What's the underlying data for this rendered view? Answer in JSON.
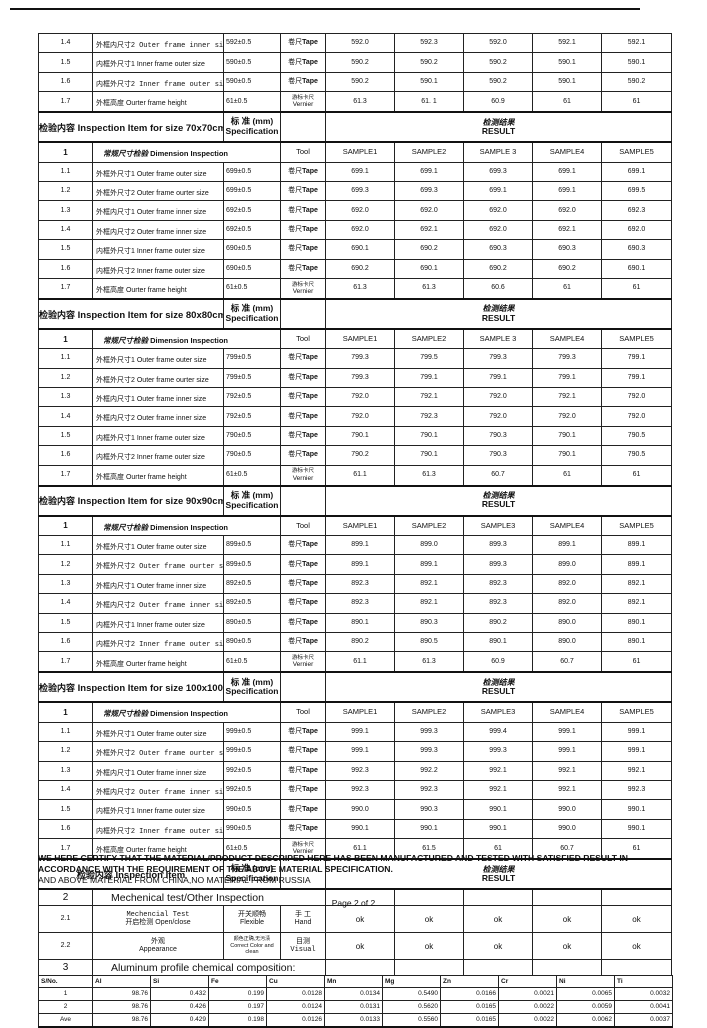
{
  "page": {
    "certify_bold": "WE HERE CERTIFY THAT THE MATERIAL/PRODUCT DESCRIPED HERE HAS BEEN MANUFACTURED AND TESTED WITH SATISFIED RESULT IN ACCORDANCE WITH THE REQUIREMENT OF THE ABOVE MATERIAL SPECIFICATION.",
    "certify_normal": "AND ABOVE MATERIAL FROM CHINA,NO MATERIAL FROM RUSSIA",
    "page_number": "Page 2 of 2"
  },
  "labels": {
    "inspection_item_cn": "检验内容",
    "spec_cn": "标 准 (mm)",
    "spec_en": "Specification",
    "result_cn": "检测结果",
    "result_en": "RESULT",
    "tool": "Tool"
  },
  "carryover_rows": [
    {
      "no": "1.4",
      "cn": "外框内尺寸2",
      "en": "Outer frame inner size opposite",
      "mono": true,
      "spec": "592±0.5",
      "tool_cn": "卷尺",
      "tool_en": "Tape",
      "vernier": false,
      "values": [
        "592.0",
        "592.3",
        "592.0",
        "592.1",
        "592.1"
      ]
    },
    {
      "no": "1.5",
      "cn": "内框外尺寸1",
      "en": "Inner frame outer size",
      "mono": false,
      "spec": "590±0.5",
      "tool_cn": "卷尺",
      "tool_en": "Tape",
      "vernier": false,
      "values": [
        "590.2",
        "590.2",
        "590.2",
        "590.1",
        "590.1"
      ]
    },
    {
      "no": "1.6",
      "cn": "内框外尺寸2",
      "en": "Inner frame outer size Opposite",
      "mono": true,
      "spec": "590±0.5",
      "tool_cn": "卷尺",
      "tool_en": "Tape",
      "vernier": false,
      "values": [
        "590.2",
        "590.1",
        "590.2",
        "590.1",
        "590.2"
      ]
    },
    {
      "no": "1.7",
      "cn": "外框高度",
      "en": "Ourter frame height",
      "mono": false,
      "spec": "61±0.5",
      "tool_cn": "游标卡尺",
      "tool_en": "Vernier",
      "vernier": true,
      "values": [
        "61.3",
        "61. 1",
        "60.9",
        "61",
        "61"
      ]
    }
  ],
  "sections": [
    {
      "title_cn": "检验内容",
      "title_en": "Inspection Item for size 70x70cm",
      "section_no": "1",
      "section_cn": "常规尺寸检验",
      "section_en": "Dimension Inspection",
      "samples": [
        "SAMPLE1",
        "SAMPLE2",
        "SAMPLE 3",
        "SAMPLE4",
        "SAMPLE5"
      ],
      "rows": [
        {
          "no": "1.1",
          "cn": "外框外尺寸1",
          "en": "Outer frame outer size",
          "mono": false,
          "spec": "699±0.5",
          "tool_cn": "卷尺",
          "tool_en": "Tape",
          "vernier": false,
          "values": [
            "699.1",
            "699.1",
            "699.3",
            "699.1",
            "699.1"
          ]
        },
        {
          "no": "1.2",
          "cn": "外框外尺寸2",
          "en": "Outer frame ourter size",
          "mono": false,
          "spec": "699±0.5",
          "tool_cn": "卷尺",
          "tool_en": "Tape",
          "vernier": false,
          "values": [
            "699.3",
            "699.3",
            "699.1",
            "699.1",
            "699.5"
          ]
        },
        {
          "no": "1.3",
          "cn": "外框内尺寸1",
          "en": "Outer frame inner size",
          "mono": false,
          "spec": "692±0.5",
          "tool_cn": "卷尺",
          "tool_en": "Tape",
          "vernier": false,
          "values": [
            "692.0",
            "692.0",
            "692.0",
            "692.0",
            "692.3"
          ]
        },
        {
          "no": "1.4",
          "cn": "外框内尺寸2",
          "en": "Outer frame inner size",
          "mono": false,
          "spec": "692±0.5",
          "tool_cn": "卷尺",
          "tool_en": "Tape",
          "vernier": false,
          "values": [
            "692.0",
            "692.1",
            "692.0",
            "692.1",
            "692.0"
          ]
        },
        {
          "no": "1.5",
          "cn": "内框外尺寸1",
          "en": "Inner frame outer size",
          "mono": false,
          "spec": "690±0.5",
          "tool_cn": "卷尺",
          "tool_en": "Tape",
          "vernier": false,
          "values": [
            "690.1",
            "690.2",
            "690.3",
            "690.3",
            "690.3"
          ]
        },
        {
          "no": "1.6",
          "cn": "内框外尺寸2",
          "en": "Inner frame outer size",
          "mono": false,
          "spec": "690±0.5",
          "tool_cn": "卷尺",
          "tool_en": "Tape",
          "vernier": false,
          "values": [
            "690.2",
            "690.1",
            "690.2",
            "690.2",
            "690.1"
          ]
        },
        {
          "no": "1.7",
          "cn": "外框高度",
          "en": "Ourter frame height",
          "mono": false,
          "spec": "61±0.5",
          "tool_cn": "游标卡尺",
          "tool_en": "Vernier",
          "vernier": true,
          "values": [
            "61.3",
            "61.3",
            "60.6",
            "61",
            "61"
          ]
        }
      ]
    },
    {
      "title_cn": "检验内容",
      "title_en": "Inspection Item for size 80x80cm",
      "section_no": "1",
      "section_cn": "常规尺寸检验",
      "section_en": "Dimension Inspection",
      "samples": [
        "SAMPLE1",
        "SAMPLE2",
        "SAMPLE 3",
        "SAMPLE4",
        "SAMPLE5"
      ],
      "rows": [
        {
          "no": "1.1",
          "cn": "外框外尺寸1",
          "en": "Outer frame outer size",
          "mono": false,
          "spec": "799±0.5",
          "tool_cn": "卷尺",
          "tool_en": "Tape",
          "vernier": false,
          "values": [
            "799.3",
            "799.5",
            "799.3",
            "799.3",
            "799.1"
          ]
        },
        {
          "no": "1.2",
          "cn": "外框外尺寸2",
          "en": "Outer frame ourter size",
          "mono": false,
          "spec": "799±0.5",
          "tool_cn": "卷尺",
          "tool_en": "Tape",
          "vernier": false,
          "values": [
            "799.3",
            "799.1",
            "799.1",
            "799.1",
            "799.1"
          ]
        },
        {
          "no": "1.3",
          "cn": "外框内尺寸1",
          "en": "Outer frame inner size",
          "mono": false,
          "spec": "792±0.5",
          "tool_cn": "卷尺",
          "tool_en": "Tape",
          "vernier": false,
          "values": [
            "792.0",
            "792.1",
            "792.0",
            "792.1",
            "792.0"
          ]
        },
        {
          "no": "1.4",
          "cn": "外框内尺寸2",
          "en": "Outer frame inner size",
          "mono": false,
          "spec": "792±0.5",
          "tool_cn": "卷尺",
          "tool_en": "Tape",
          "vernier": false,
          "values": [
            "792.0",
            "792.3",
            "792.0",
            "792.0",
            "792.0"
          ]
        },
        {
          "no": "1.5",
          "cn": "内框外尺寸1",
          "en": "Inner frame outer size",
          "mono": false,
          "spec": "790±0.5",
          "tool_cn": "卷尺",
          "tool_en": "Tape",
          "vernier": false,
          "values": [
            "790.1",
            "790.1",
            "790.3",
            "790.1",
            "790.5"
          ]
        },
        {
          "no": "1.6",
          "cn": "内框外尺寸2",
          "en": "Inner frame outer size",
          "mono": false,
          "spec": "790±0.5",
          "tool_cn": "卷尺",
          "tool_en": "Tape",
          "vernier": false,
          "values": [
            "790.2",
            "790.1",
            "790.3",
            "790.1",
            "790.5"
          ]
        },
        {
          "no": "1.7",
          "cn": "外框高度",
          "en": "Ourter frame height",
          "mono": false,
          "spec": "61±0.5",
          "tool_cn": "游标卡尺",
          "tool_en": "Vernier",
          "vernier": true,
          "values": [
            "61.1",
            "61.3",
            "60.7",
            "61",
            "61"
          ]
        }
      ]
    },
    {
      "title_cn": "检验内容",
      "title_en": "Inspection Item for size 90x90cm",
      "section_no": "1",
      "section_cn": "常规尺寸检验",
      "section_en": "Dimension Inspection",
      "samples": [
        "SAMPLE1",
        "SAMPLE2",
        "SAMPLE3",
        "SAMPLE4",
        "SAMPLE5"
      ],
      "rows": [
        {
          "no": "1.1",
          "cn": "外框外尺寸1",
          "en": "Outer frame outer size",
          "mono": false,
          "spec": "899±0.5",
          "tool_cn": "卷尺",
          "tool_en": "Tape",
          "vernier": false,
          "values": [
            "899.1",
            "899.0",
            "899.3",
            "899.1",
            "899.1"
          ]
        },
        {
          "no": "1.2",
          "cn": "外框外尺寸2",
          "en": "Outer frame ourter size opposite",
          "mono": true,
          "spec": "899±0.5",
          "tool_cn": "卷尺",
          "tool_en": "Tape",
          "vernier": false,
          "values": [
            "899.1",
            "899.1",
            "899.3",
            "899.0",
            "899.1"
          ]
        },
        {
          "no": "1.3",
          "cn": "外框内尺寸1",
          "en": "Outer frame inner size",
          "mono": false,
          "spec": "892±0.5",
          "tool_cn": "卷尺",
          "tool_en": "Tape",
          "vernier": false,
          "values": [
            "892.3",
            "892.1",
            "892.3",
            "892.0",
            "892.1"
          ]
        },
        {
          "no": "1.4",
          "cn": "外框内尺寸2",
          "en": "Outer frame inner size opposite",
          "mono": true,
          "spec": "892±0.5",
          "tool_cn": "卷尺",
          "tool_en": "Tape",
          "vernier": false,
          "values": [
            "892.3",
            "892.1",
            "892.3",
            "892.0",
            "892.1"
          ]
        },
        {
          "no": "1.5",
          "cn": "内框外尺寸1",
          "en": "Inner frame outer size",
          "mono": false,
          "spec": "890±0.5",
          "tool_cn": "卷尺",
          "tool_en": "Tape",
          "vernier": false,
          "values": [
            "890.1",
            "890.3",
            "890.2",
            "890.0",
            "890.1"
          ]
        },
        {
          "no": "1.6",
          "cn": "内框外尺寸2",
          "en": "Inner frame outer size Opposite",
          "mono": true,
          "spec": "890±0.5",
          "tool_cn": "卷尺",
          "tool_en": "Tape",
          "vernier": false,
          "values": [
            "890.2",
            "890.5",
            "890.1",
            "890.0",
            "890.1"
          ]
        },
        {
          "no": "1.7",
          "cn": "外框高度",
          "en": "Ourter frame height",
          "mono": false,
          "spec": "61±0.5",
          "tool_cn": "游标卡尺",
          "tool_en": "Vernier",
          "vernier": true,
          "values": [
            "61.1",
            "61.3",
            "60.9",
            "60.7",
            "61"
          ]
        }
      ]
    },
    {
      "title_cn": "检验内容",
      "title_en": "Inspection Item for size 100x100cm",
      "section_no": "1",
      "section_cn": "常规尺寸检验",
      "section_en": "Dimension Inspection",
      "samples": [
        "SAMPLE1",
        "SAMPLE2",
        "SAMPLE3",
        "SAMPLE4",
        "SAMPLE5"
      ],
      "rows": [
        {
          "no": "1.1",
          "cn": "外框外尺寸1",
          "en": "Outer frame outer size",
          "mono": false,
          "spec": "999±0.5",
          "tool_cn": "卷尺",
          "tool_en": "Tape",
          "vernier": false,
          "values": [
            "999.1",
            "999.3",
            "999.4",
            "999.1",
            "999.1"
          ]
        },
        {
          "no": "1.2",
          "cn": "外框外尺寸2",
          "en": "Outer frame ourter size opposite",
          "mono": true,
          "spec": "999±0.5",
          "tool_cn": "卷尺",
          "tool_en": "Tape",
          "vernier": false,
          "values": [
            "999.1",
            "999.3",
            "999.3",
            "999.1",
            "999.1"
          ]
        },
        {
          "no": "1.3",
          "cn": "外框内尺寸1",
          "en": "Outer frame inner size",
          "mono": false,
          "spec": "992±0.5",
          "tool_cn": "卷尺",
          "tool_en": "Tape",
          "vernier": false,
          "values": [
            "992.3",
            "992.2",
            "992.1",
            "992.1",
            "992.1"
          ]
        },
        {
          "no": "1.4",
          "cn": "外框内尺寸2",
          "en": "Outer frame inner size opposite",
          "mono": true,
          "spec": "992±0.5",
          "tool_cn": "卷尺",
          "tool_en": "Tape",
          "vernier": false,
          "values": [
            "992.3",
            "992.3",
            "992.1",
            "992.1",
            "992.3"
          ]
        },
        {
          "no": "1.5",
          "cn": "内框外尺寸1",
          "en": "Inner frame outer size",
          "mono": false,
          "spec": "990±0.5",
          "tool_cn": "卷尺",
          "tool_en": "Tape",
          "vernier": false,
          "values": [
            "990.0",
            "990.3",
            "990.1",
            "990.0",
            "990.1"
          ]
        },
        {
          "no": "1.6",
          "cn": "内框外尺寸2",
          "en": "Inner frame outer size Opposite",
          "mono": true,
          "spec": "990±0.5",
          "tool_cn": "卷尺",
          "tool_en": "Tape",
          "vernier": false,
          "values": [
            "990.1",
            "990.1",
            "990.1",
            "990.0",
            "990.1"
          ]
        },
        {
          "no": "1.7",
          "cn": "外框高度",
          "en": "Ourter frame height",
          "mono": false,
          "spec": "61±0.5",
          "tool_cn": "游标卡尺",
          "tool_en": "Vernier",
          "vernier": true,
          "values": [
            "61.1",
            "61.5",
            "61",
            "60.7",
            "61"
          ]
        }
      ]
    }
  ],
  "other": {
    "band_cn": "检验内容",
    "band_en": "Inspection Item",
    "row2_no": "2",
    "row2_title": "Mechenical test/Other Inspection",
    "tests": [
      {
        "no": "2.1",
        "item_l1": "Mechencial Test",
        "item_l1_mono": true,
        "item_l2": "开启检测 Open/close",
        "spec_l1": "开关顺畅",
        "spec_l2": "Flexible",
        "spec_small": false,
        "tool_l1": "手 工",
        "tool_l2": "Hand",
        "tool_mono": false,
        "values": [
          "ok",
          "ok",
          "ok",
          "ok",
          "ok"
        ]
      },
      {
        "no": "2.2",
        "item_l1": "外观",
        "item_l1_mono": false,
        "item_l2": "Appearance",
        "spec_l1": "颜色正确,无污渍",
        "spec_l2": "Correct Color and clean",
        "spec_small": true,
        "tool_l1": "目测",
        "tool_l2": "Visual",
        "tool_mono": true,
        "values": [
          "ok",
          "ok",
          "ok",
          "ok",
          "ok"
        ]
      }
    ],
    "row3_no": "3",
    "row3_title": "Aluminum profile chemical  composition:"
  },
  "chemical": {
    "headers": [
      "S/No.",
      "Al",
      "Si",
      "Fe",
      "Cu",
      "Mn",
      "Mg",
      "Zn",
      "Cr",
      "Ni",
      "Ti"
    ],
    "rows": [
      {
        "no": "1",
        "values": [
          "98.76",
          "0.432",
          "0.199",
          "0.0128",
          "0.0134",
          "0.5490",
          "0.0166",
          "0.0021",
          "0.0065",
          "0.0032"
        ]
      },
      {
        "no": "2",
        "values": [
          "98.76",
          "0.426",
          "0.197",
          "0.0124",
          "0.0131",
          "0.5620",
          "0.0165",
          "0.0022",
          "0.0059",
          "0.0041"
        ]
      },
      {
        "no": "Ave",
        "values": [
          "98.76",
          "0.429",
          "0.198",
          "0.0126",
          "0.0133",
          "0.5560",
          "0.0165",
          "0.0022",
          "0.0062",
          "0.0037"
        ]
      }
    ]
  }
}
